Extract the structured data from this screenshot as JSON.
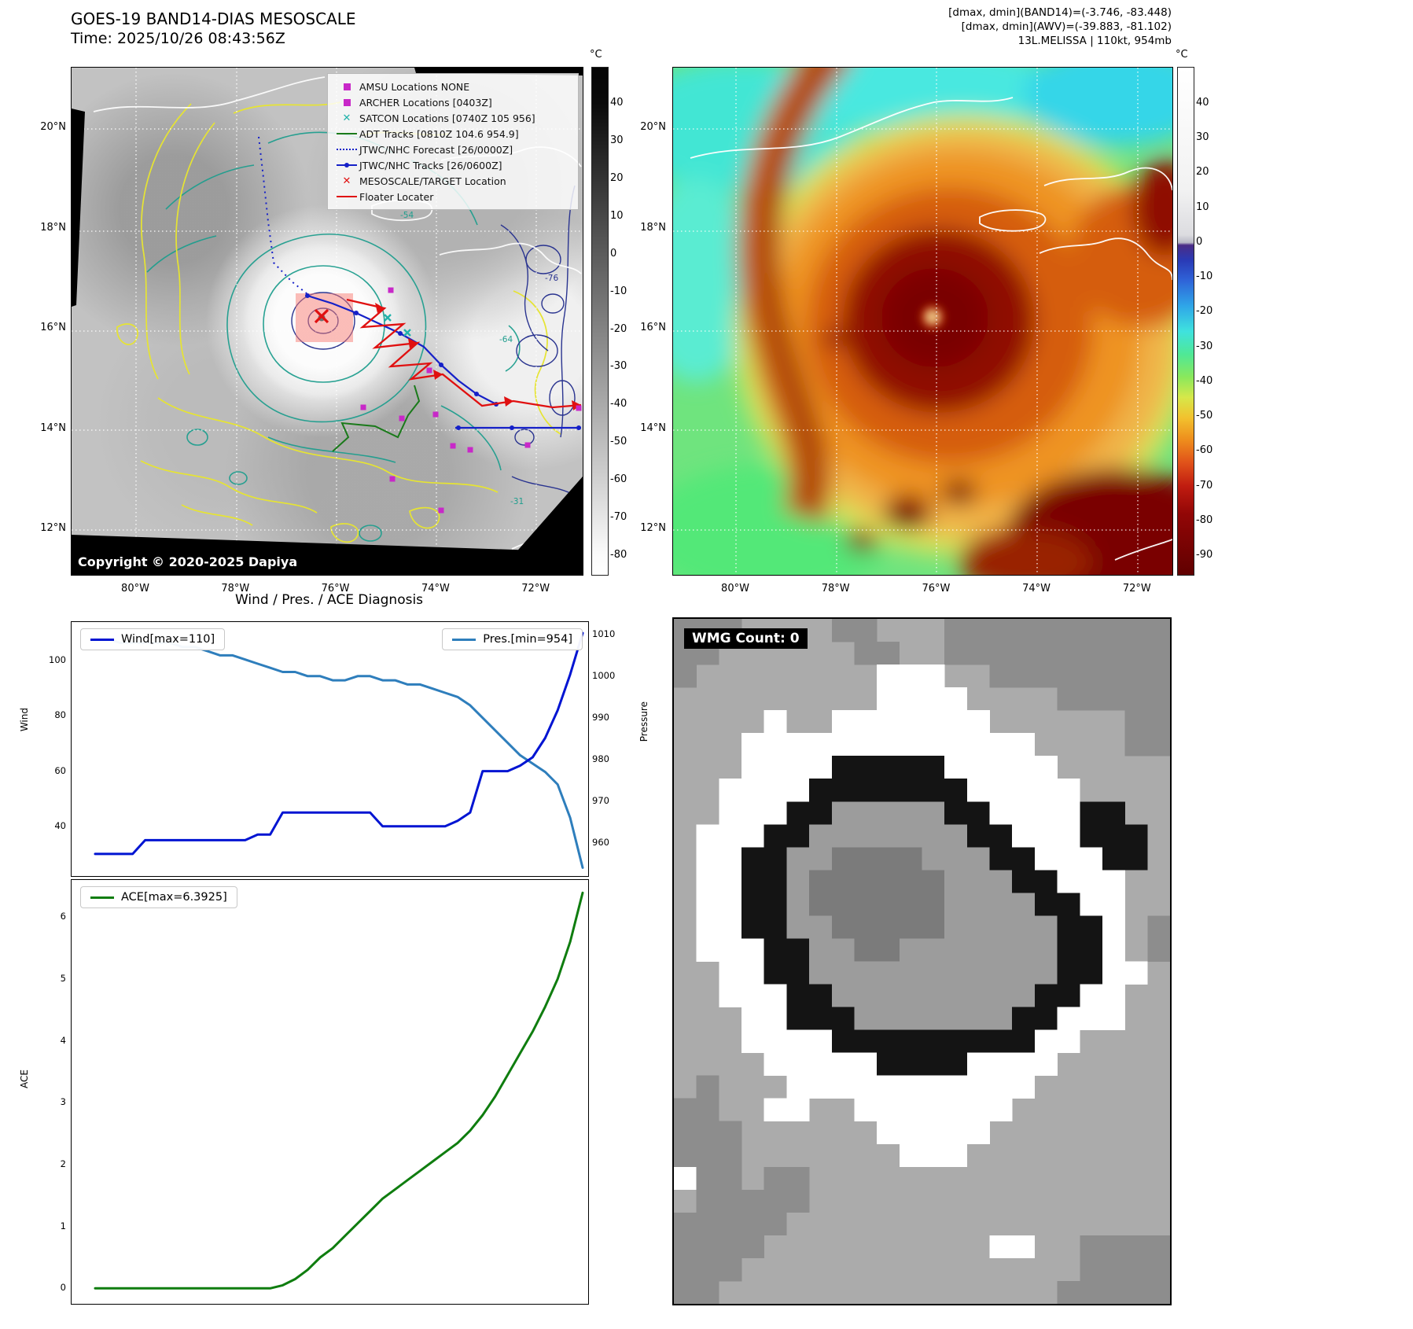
{
  "panel1": {
    "title": "GOES-19 BAND14-DIAS MESOSCALE",
    "time": "Time: 2025/10/26 08:43:56Z",
    "copyright": "Copyright © 2020-2025 Dapiya",
    "colorbar_unit": "°C",
    "colorbar_ticks": [
      "40",
      "30",
      "20",
      "10",
      "0",
      "-10",
      "-20",
      "-30",
      "-40",
      "-50",
      "-60",
      "-70",
      "-80"
    ],
    "lat_ticks": [
      "20°N",
      "18°N",
      "16°N",
      "14°N",
      "12°N"
    ],
    "lon_ticks": [
      "80°W",
      "78°W",
      "76°W",
      "74°W",
      "72°W"
    ],
    "contour_labels": [
      "-54",
      "-64",
      "-76",
      "-31"
    ],
    "legend": [
      {
        "marker": "magenta-square-icon",
        "label": "AMSU Locations NONE"
      },
      {
        "marker": "magenta-square-icon",
        "label": "ARCHER Locations [0403Z]"
      },
      {
        "marker": "teal-x-icon",
        "label": "SATCON Locations [0740Z 105 956]"
      },
      {
        "marker": "green-line-icon",
        "label": "ADT Tracks [0810Z 104.6 954.9]"
      },
      {
        "marker": "blue-dotted-line-icon",
        "label": "JTWC/NHC Forecast [26/0000Z]"
      },
      {
        "marker": "blue-dot-line-icon",
        "label": "JTWC/NHC Tracks [26/0600Z]"
      },
      {
        "marker": "red-x-icon",
        "label": "MESOSCALE/TARGET Location"
      },
      {
        "marker": "red-line-icon",
        "label": "Floater Locater"
      }
    ]
  },
  "panel2": {
    "header_lines": [
      "[dmax, dmin](BAND14)=(-3.746, -83.448)",
      "[dmax, dmin](AWV)=(-39.883, -81.102)",
      "13L.MELISSA | 110kt, 954mb"
    ],
    "colorbar_unit": "°C",
    "colorbar_ticks": [
      "40",
      "30",
      "20",
      "10",
      "0",
      "-10",
      "-20",
      "-30",
      "-40",
      "-50",
      "-60",
      "-70",
      "-80",
      "-90"
    ],
    "lat_ticks": [
      "20°N",
      "18°N",
      "16°N",
      "14°N",
      "12°N"
    ],
    "lon_ticks": [
      "80°W",
      "78°W",
      "76°W",
      "74°W",
      "72°W"
    ]
  },
  "charts": {
    "title": "Wind / Pres. / ACE Diagnosis",
    "wind_legend": "Wind[max=110]",
    "pres_legend": "Pres.[min=954]",
    "ace_legend": "ACE[max=6.3925]",
    "wind_axis_label": "Wind",
    "pres_axis_label": "Pressure",
    "ace_axis_label": "ACE"
  },
  "chart_data": [
    {
      "type": "line",
      "title": "Wind / Pres. / ACE Diagnosis",
      "series": [
        {
          "name": "Wind[max=110]",
          "axis": "left",
          "color": "#0014d2",
          "values": [
            30,
            30,
            30,
            30,
            35,
            35,
            35,
            35,
            35,
            35,
            35,
            35,
            35,
            37,
            37,
            45,
            45,
            45,
            45,
            45,
            45,
            45,
            45,
            40,
            40,
            40,
            40,
            40,
            40,
            42,
            45,
            60,
            60,
            60,
            62,
            65,
            72,
            82,
            95,
            110
          ]
        },
        {
          "name": "Pres.[min=954]",
          "axis": "right",
          "color": "#2e7ebc",
          "values": [
            1009,
            1009,
            1008,
            1008,
            1008,
            1008,
            1008,
            1007,
            1007,
            1006,
            1005,
            1005,
            1004,
            1003,
            1002,
            1001,
            1001,
            1000,
            1000,
            999,
            999,
            1000,
            1000,
            999,
            999,
            998,
            998,
            997,
            996,
            995,
            993,
            990,
            987,
            984,
            981,
            979,
            977,
            974,
            966,
            954
          ]
        }
      ],
      "left_ylabel": "Wind",
      "right_ylabel": "Pressure",
      "left_ylim": [
        22,
        114
      ],
      "right_ylim": [
        952,
        1013
      ],
      "left_ticks": [
        100,
        80,
        60,
        40
      ],
      "right_ticks": [
        1010,
        1000,
        990,
        980,
        970,
        960
      ],
      "legend_position": "top-left / top-right",
      "grid": false
    },
    {
      "type": "line",
      "series": [
        {
          "name": "ACE[max=6.3925]",
          "color": "#0f7d0f",
          "values": [
            0,
            0,
            0,
            0,
            0,
            0,
            0,
            0,
            0,
            0,
            0,
            0,
            0,
            0,
            0,
            0.05,
            0.15,
            0.3,
            0.5,
            0.65,
            0.85,
            1.05,
            1.25,
            1.45,
            1.6,
            1.75,
            1.9,
            2.05,
            2.2,
            2.35,
            2.55,
            2.8,
            3.1,
            3.45,
            3.8,
            4.15,
            4.55,
            5.0,
            5.6,
            6.3925
          ]
        }
      ],
      "ylabel": "ACE",
      "ylim": [
        -0.25,
        6.6
      ],
      "yticks": [
        6,
        5,
        4,
        3,
        2,
        1,
        0
      ],
      "legend_position": "top-left",
      "grid": false
    }
  ],
  "panel4": {
    "header": "WMG Count: 0",
    "palette": {
      ".": "#ababab",
      "d": "#8d8d8d",
      "w": "#ffffff",
      "b": "#141414",
      "g": "#9c9c9c",
      "D": "#7b7b7b"
    },
    "grid": [
      "ddd....dd...dddddddddd",
      "dd......dd..dddddddddd",
      "d........www..dddddddd",
      ".........wwww....ddddd",
      "....w..wwwwwww......dd",
      "...wwwwwwwwwwwww....dd",
      "...wwwwbbbbbwwwww.....",
      "..wwwwbbbbbbbwwwww....",
      "..wwwbbgggggbbwwwwbb..",
      ".wwwbbgggggggbbwwwbbb.",
      ".wwbbggDDDDgggbbwwwbb.",
      ".wwbbgDDDDDDgggbbwww..",
      ".wwbbgDDDDDDggggbbww..",
      ".wwbbggDDDDDgggggbbw.d",
      ".wwwbbggDDgggggggbbw.d",
      "..wwbbgggggggggggbbww.",
      "..wwwbbgggggggggbbww..",
      "...wwbbbgggggggbbwww..",
      "...wwwwbbbbbbbbbww....",
      "....wwwwwbbbbwwww.....",
      ".d...wwwwwwwwwww......",
      "dd..ww..wwwwwww.......",
      "ddd......wwwww........",
      "ddd.......www.........",
      "wdd.dd................",
      ".ddddd................",
      "ddddd.................",
      "dddd..........ww..dddd",
      "ddd...............dddd",
      "dd...............ddddd"
    ]
  }
}
